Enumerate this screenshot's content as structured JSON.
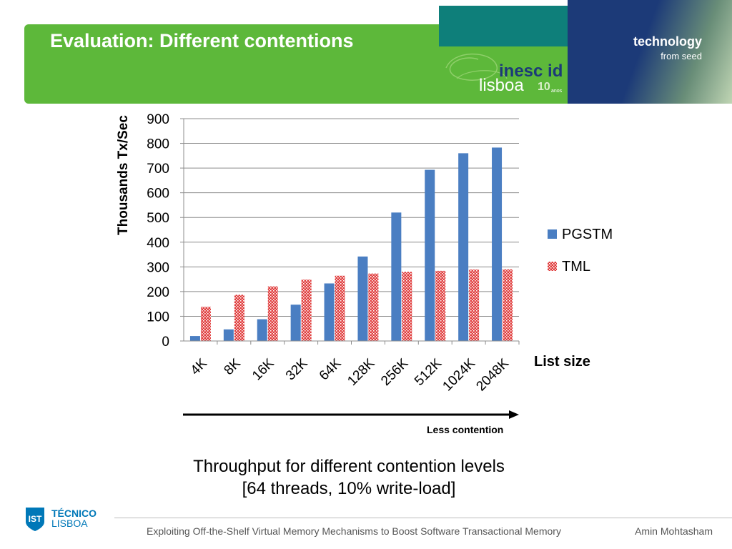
{
  "slide": {
    "title": "Evaluation: Different contentions",
    "tagline_main": "technology",
    "tagline_sub": "from seed"
  },
  "logo": {
    "inesc": "inesc id",
    "lisboa": "lisboa",
    "anos": "10",
    "anos_small": "anos"
  },
  "chart_data": {
    "type": "bar",
    "ylabel": "Thousands Tx/Sec",
    "xlabel": "List size",
    "ylim": [
      0,
      900
    ],
    "yticks": [
      0,
      100,
      200,
      300,
      400,
      500,
      600,
      700,
      800,
      900
    ],
    "grid": true,
    "legend_position": "right",
    "categories": [
      "4K",
      "8K",
      "16K",
      "32K",
      "64K",
      "128K",
      "256K",
      "512K",
      "1024K",
      "2048K"
    ],
    "series": [
      {
        "name": "PGSTM",
        "color": "#4a7ec2",
        "values": [
          20,
          47,
          88,
          147,
          233,
          342,
          520,
          693,
          760,
          783
        ]
      },
      {
        "name": "TML",
        "color": "#d83030",
        "values": [
          138,
          187,
          221,
          248,
          264,
          273,
          280,
          284,
          289,
          290
        ]
      }
    ]
  },
  "annotation": {
    "less_contention": "Less contention"
  },
  "caption": {
    "line1": "Throughput for different contention levels",
    "line2": "[64 threads, 10% write-load]"
  },
  "footer": {
    "title": "Exploiting Off-the-Shelf Virtual Memory Mechanisms to Boost Software Transactional Memory",
    "author": "Amin Mohtasham",
    "institution_name": "TÉCNICO",
    "institution_city": "LISBOA"
  }
}
